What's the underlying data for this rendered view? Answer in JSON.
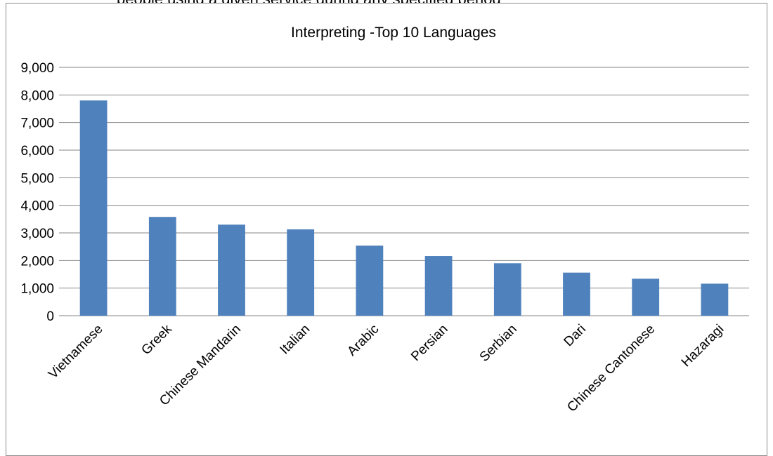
{
  "header": {
    "clipped_text": "people using a given service during any specified period"
  },
  "chart_data": {
    "type": "bar",
    "title": "Interpreting -Top 10 Languages",
    "xlabel": "",
    "ylabel": "",
    "categories": [
      "Vietnamese",
      "Greek",
      "Chinese Mandarin",
      "Italian",
      "Arabic",
      "Persian",
      "Serbian",
      "Dari",
      "Chinese Cantonese",
      "Hazaragi"
    ],
    "values": [
      7800,
      3580,
      3300,
      3130,
      2540,
      2160,
      1900,
      1560,
      1340,
      1160
    ],
    "ylim": [
      0,
      9000
    ],
    "yticks": [
      0,
      1000,
      2000,
      3000,
      4000,
      5000,
      6000,
      7000,
      8000,
      9000
    ],
    "ytick_labels": [
      "0",
      "1,000",
      "2,000",
      "3,000",
      "4,000",
      "5,000",
      "6,000",
      "7,000",
      "8,000",
      "9,000"
    ],
    "grid": true,
    "legend": "none",
    "bar_color": "#4f81bd",
    "grid_color": "#868686"
  }
}
